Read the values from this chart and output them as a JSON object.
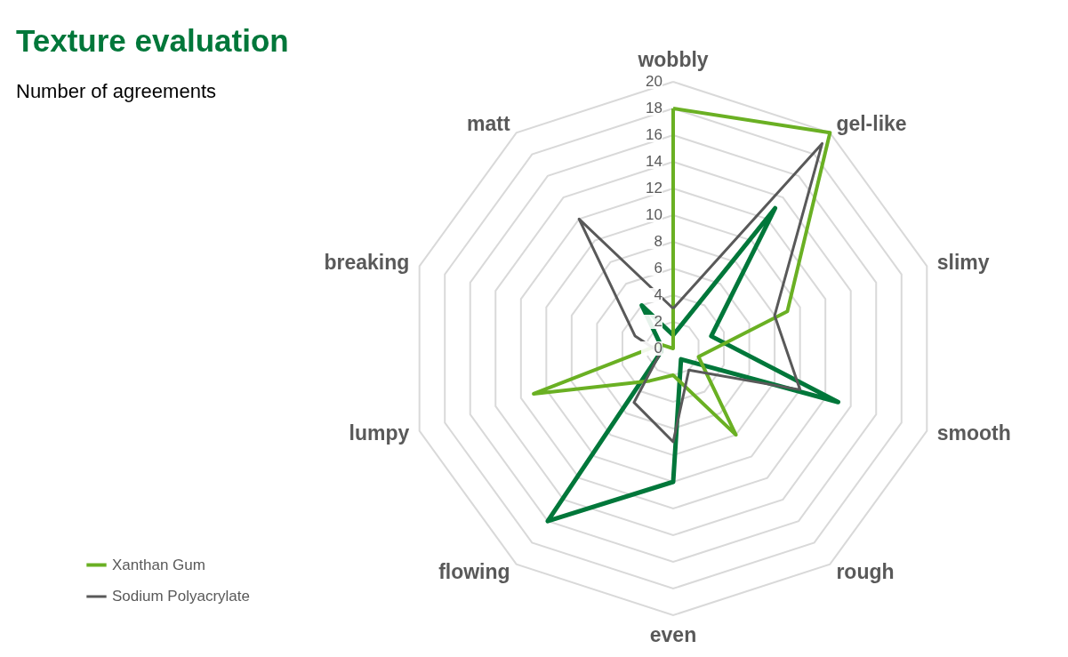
{
  "chart_data": {
    "type": "radar",
    "title": "Texture evaluation",
    "subtitle": "Number of agreements",
    "categories": [
      "wobbly",
      "gel-like",
      "slimy",
      "smooth",
      "rough",
      "even",
      "flowing",
      "lumpy",
      "breaking",
      "matt"
    ],
    "series": [
      {
        "color": "#00773a",
        "values": [
          1,
          13,
          3,
          13,
          1,
          10,
          16,
          1,
          1,
          4
        ]
      },
      {
        "name": "Xanthan Gum",
        "color": "#6ab023",
        "values": [
          18,
          20,
          9,
          2,
          8,
          2,
          3,
          11,
          1,
          0
        ]
      },
      {
        "name": "Sodium Polyacrylate",
        "color": "#595959",
        "values": [
          3,
          19,
          8,
          10,
          2,
          7,
          5,
          1,
          3,
          12
        ]
      }
    ],
    "ylim": [
      0,
      20
    ],
    "yticks": [
      0,
      2,
      4,
      6,
      8,
      10,
      12,
      14,
      16,
      18,
      20
    ],
    "grid": true,
    "legend": "bottom left"
  }
}
